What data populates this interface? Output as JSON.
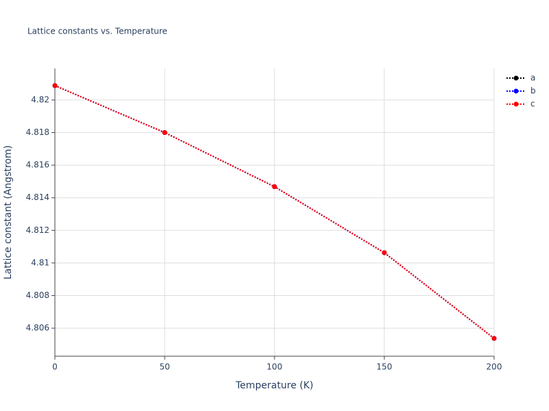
{
  "chart_data": {
    "type": "line",
    "title": "Lattice constants vs. Temperature",
    "x_label": "Temperature (K)",
    "y_label": "Lattice constant (Angstrom)",
    "x": [
      0,
      50,
      100,
      150,
      200
    ],
    "series": [
      {
        "name": "a",
        "color": "#000000",
        "values": [
          4.82088,
          4.818,
          4.81468,
          4.81063,
          4.80537
        ]
      },
      {
        "name": "b",
        "color": "#0000ff",
        "values": [
          4.82088,
          4.818,
          4.81468,
          4.81063,
          4.80537
        ]
      },
      {
        "name": "c",
        "color": "#ff0000",
        "values": [
          4.82088,
          4.818,
          4.81468,
          4.81063,
          4.80537
        ]
      }
    ],
    "xlim": [
      0,
      200
    ],
    "xticks": [
      0,
      50,
      100,
      150,
      200
    ],
    "ylim": [
      4.80428,
      4.82193
    ],
    "yticks": [
      4.806,
      4.808,
      4.81,
      4.812,
      4.814,
      4.816,
      4.818,
      4.82
    ],
    "grid": true,
    "legend": "top-right",
    "line_style": "dotted"
  }
}
